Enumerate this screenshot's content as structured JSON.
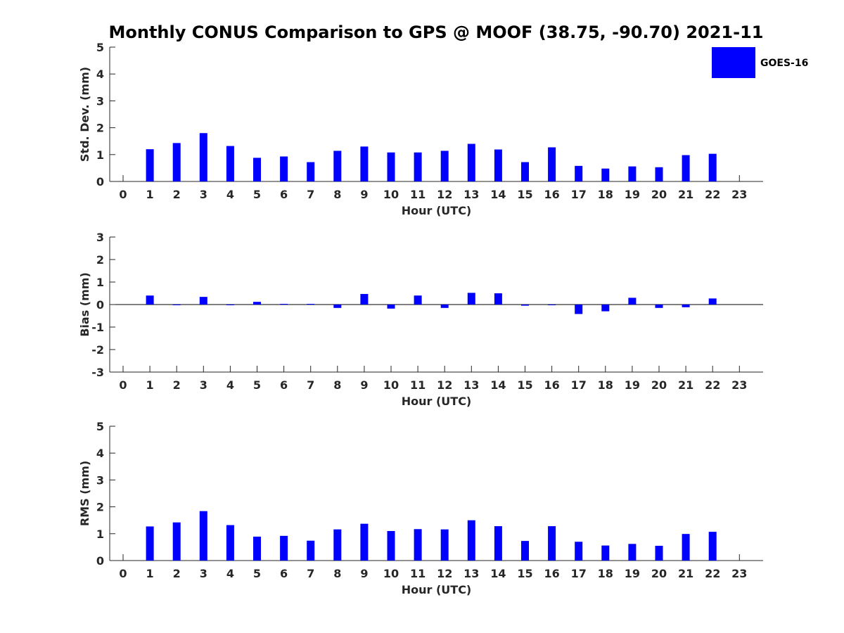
{
  "title": "Monthly CONUS Comparison to GPS @ MOOF (38.75, -90.70) 2021-11",
  "legend": {
    "label": "GOES-16",
    "color": "#0000ff",
    "placement": "top-right"
  },
  "chart_data": [
    {
      "type": "bar",
      "name": "std-dev",
      "ylabel": "Std. Dev. (mm)",
      "xlabel": "Hour (UTC)",
      "ylim": [
        0,
        5
      ],
      "yticks": [
        0,
        1,
        2,
        3,
        4,
        5
      ],
      "categories": [
        0,
        1,
        2,
        3,
        4,
        5,
        6,
        7,
        8,
        9,
        10,
        11,
        12,
        13,
        14,
        15,
        16,
        17,
        18,
        19,
        20,
        21,
        22,
        23
      ],
      "series": [
        {
          "name": "GOES-16",
          "values": [
            null,
            1.2,
            1.43,
            1.8,
            1.32,
            0.88,
            0.93,
            0.72,
            1.14,
            1.3,
            1.08,
            1.08,
            1.14,
            1.4,
            1.19,
            0.72,
            1.27,
            0.58,
            0.48,
            0.56,
            0.53,
            0.98,
            1.03,
            null
          ]
        }
      ]
    },
    {
      "type": "bar",
      "name": "bias",
      "ylabel": "Bias (mm)",
      "xlabel": "Hour (UTC)",
      "ylim": [
        -3,
        3
      ],
      "yticks": [
        -3,
        -2,
        -1,
        0,
        1,
        2,
        3
      ],
      "categories": [
        0,
        1,
        2,
        3,
        4,
        5,
        6,
        7,
        8,
        9,
        10,
        11,
        12,
        13,
        14,
        15,
        16,
        17,
        18,
        19,
        20,
        21,
        22,
        23
      ],
      "series": [
        {
          "name": "GOES-16",
          "values": [
            null,
            0.4,
            -0.02,
            0.34,
            -0.02,
            0.12,
            0.03,
            0.03,
            -0.15,
            0.47,
            -0.18,
            0.4,
            -0.15,
            0.52,
            0.5,
            -0.05,
            -0.01,
            -0.42,
            -0.3,
            0.3,
            -0.15,
            -0.12,
            0.27,
            null
          ]
        }
      ]
    },
    {
      "type": "bar",
      "name": "rms",
      "ylabel": "RMS (mm)",
      "xlabel": "Hour (UTC)",
      "ylim": [
        0,
        5
      ],
      "yticks": [
        0,
        1,
        2,
        3,
        4,
        5
      ],
      "categories": [
        0,
        1,
        2,
        3,
        4,
        5,
        6,
        7,
        8,
        9,
        10,
        11,
        12,
        13,
        14,
        15,
        16,
        17,
        18,
        19,
        20,
        21,
        22,
        23
      ],
      "series": [
        {
          "name": "GOES-16",
          "values": [
            null,
            1.27,
            1.42,
            1.84,
            1.32,
            0.89,
            0.92,
            0.74,
            1.16,
            1.37,
            1.1,
            1.17,
            1.16,
            1.5,
            1.28,
            0.73,
            1.28,
            0.7,
            0.56,
            0.62,
            0.55,
            0.99,
            1.07,
            null
          ]
        }
      ]
    }
  ]
}
